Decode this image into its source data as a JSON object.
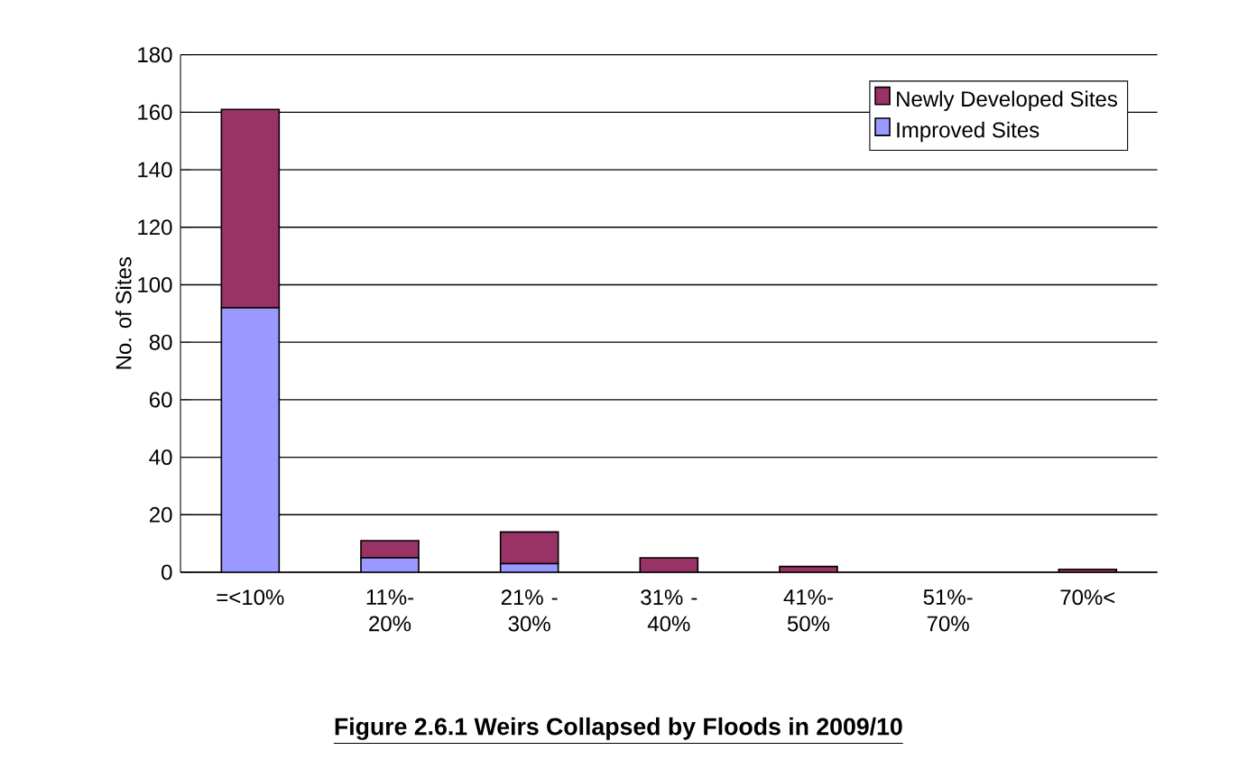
{
  "chart_data": {
    "type": "bar",
    "stacked": true,
    "title": "Figure 2.6.1 Weirs Collapsed by Floods in 2009/10",
    "ylabel": "No. of Sites",
    "categories": [
      "=<10%",
      "11%- 20%",
      "21% - 30%",
      "31% - 40%",
      "41%- 50%",
      "51%- 70%",
      "70%<"
    ],
    "series": [
      {
        "name": "Improved Sites",
        "color": "#9999ff",
        "values": [
          92,
          5,
          3,
          0,
          0,
          0,
          0
        ]
      },
      {
        "name": "Newly Developed Sites",
        "color": "#993366",
        "values": [
          69,
          6,
          11,
          5,
          2,
          0,
          1
        ]
      }
    ],
    "ylim": [
      0,
      180
    ],
    "yticks": [
      0,
      20,
      40,
      60,
      80,
      100,
      120,
      140,
      160,
      180
    ],
    "grid": "y",
    "legend": "top right"
  }
}
